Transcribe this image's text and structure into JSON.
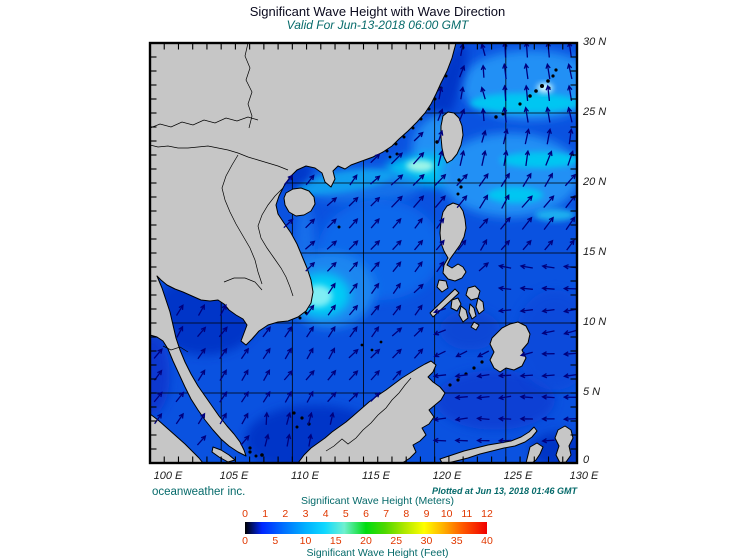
{
  "header": {
    "title": "Significant Wave Height with Wave Direction",
    "subtitle": "Valid For Jun-13-2018 06:00 GMT"
  },
  "axes": {
    "lat_labels": [
      "30 N",
      "25 N",
      "20 N",
      "15 N",
      "10 N",
      "5 N",
      "0"
    ],
    "lon_labels": [
      "100 E",
      "105 E",
      "110 E",
      "115 E",
      "120 E",
      "125 E",
      "130 E"
    ],
    "lon_range": [
      100,
      130
    ],
    "lat_range": [
      0,
      30
    ]
  },
  "footer": {
    "credit": "oceanweather inc.",
    "plotted": "Plotted at Jun 13, 2018 01:46 GMT"
  },
  "colorbar": {
    "meters_title": "Significant Wave Height (Meters)",
    "feet_title": "Significant Wave Height (Feet)",
    "meters_ticks": [
      "0",
      "1",
      "2",
      "3",
      "4",
      "5",
      "6",
      "7",
      "8",
      "9",
      "10",
      "11",
      "12"
    ],
    "feet_ticks": [
      "0",
      "5",
      "10",
      "15",
      "20",
      "25",
      "30",
      "35",
      "40"
    ],
    "tick_color": "#e03800",
    "title_color": "#056a6a",
    "gradient": [
      {
        "c": "#000000",
        "p": 0
      },
      {
        "c": "#0026ff",
        "p": 7
      },
      {
        "c": "#0070ff",
        "p": 16
      },
      {
        "c": "#00b0ff",
        "p": 25
      },
      {
        "c": "#10d8ff",
        "p": 33
      },
      {
        "c": "#70f0d0",
        "p": 41
      },
      {
        "c": "#00dc10",
        "p": 50
      },
      {
        "c": "#50d800",
        "p": 58
      },
      {
        "c": "#b0e800",
        "p": 66
      },
      {
        "c": "#ffff00",
        "p": 74
      },
      {
        "c": "#ffb000",
        "p": 82
      },
      {
        "c": "#ff5800",
        "p": 90
      },
      {
        "c": "#f00000",
        "p": 100
      }
    ]
  },
  "map": {
    "land_color": "#c6c6c6",
    "ocean_color": "#0a52e0",
    "arrow_color": "#00007d",
    "grid_interval_deg": 5
  }
}
